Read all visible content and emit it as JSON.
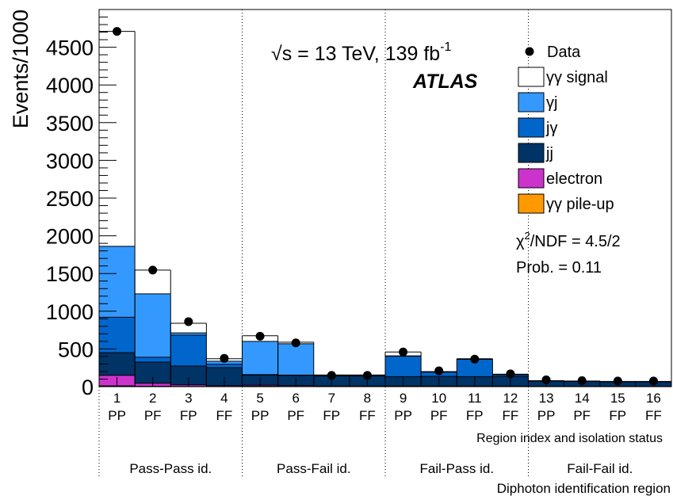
{
  "chart_data": {
    "type": "bar",
    "stacked": true,
    "ylabel": "Events/1000",
    "ylim": [
      0,
      5000
    ],
    "yticks": [
      0,
      500,
      1000,
      1500,
      2000,
      2500,
      3000,
      3500,
      4000,
      4500
    ],
    "categories": [
      "1",
      "2",
      "3",
      "4",
      "5",
      "6",
      "7",
      "8",
      "9",
      "10",
      "11",
      "12",
      "13",
      "14",
      "15",
      "16"
    ],
    "isolation_status": [
      "PP",
      "PF",
      "FP",
      "FF",
      "PP",
      "PF",
      "FP",
      "FF",
      "PP",
      "PF",
      "FP",
      "FF",
      "PP",
      "PF",
      "FP",
      "FF"
    ],
    "xlabel_region": "Region index and isolation status",
    "xlabel_identification": "Diphoton identification region",
    "identification_groups": [
      "Pass-Pass id.",
      "Pass-Fail id.",
      "Fail-Pass id.",
      "Fail-Fail id."
    ],
    "energy_label": "√s = 13 TeV, 139 fb",
    "energy_label_sup": "-1",
    "experiment": "ATLAS",
    "fit_chi2_label": "χ",
    "fit_chi2_sup": "2",
    "fit_chi2_value": "/NDF = 4.5/2",
    "fit_prob": "Prob. = 0.11",
    "legend_position": "top-right",
    "data_label": "Data",
    "data": [
      4710,
      1545,
      862,
      375,
      668,
      580,
      150,
      150,
      460,
      210,
      365,
      170,
      90,
      80,
      75,
      75
    ],
    "series": [
      {
        "name": "γγ pile-up",
        "color": "#ff9900",
        "values": [
          10,
          5,
          3,
          2,
          5,
          3,
          2,
          2,
          3,
          2,
          2,
          2,
          1,
          1,
          1,
          1
        ]
      },
      {
        "name": "electron",
        "color": "#cc33cc",
        "values": [
          140,
          40,
          20,
          10,
          15,
          10,
          5,
          5,
          5,
          5,
          5,
          5,
          3,
          3,
          3,
          3
        ]
      },
      {
        "name": "jj",
        "color": "#003366",
        "values": [
          300,
          280,
          250,
          240,
          135,
          135,
          135,
          135,
          125,
          130,
          125,
          130,
          70,
          65,
          60,
          60
        ]
      },
      {
        "name": "jγ",
        "color": "#0066cc",
        "values": [
          470,
          65,
          410,
          45,
          5,
          5,
          5,
          5,
          270,
          55,
          230,
          20,
          2,
          2,
          2,
          2
        ]
      },
      {
        "name": "γj",
        "color": "#3399ff",
        "values": [
          940,
          840,
          30,
          40,
          440,
          415,
          3,
          3,
          5,
          5,
          5,
          5,
          2,
          2,
          2,
          2
        ]
      },
      {
        "name": "γγ signal",
        "color": "#ffffff",
        "values": [
          2850,
          315,
          127,
          33,
          75,
          22,
          5,
          5,
          52,
          3,
          3,
          3,
          2,
          2,
          2,
          2
        ]
      }
    ]
  }
}
